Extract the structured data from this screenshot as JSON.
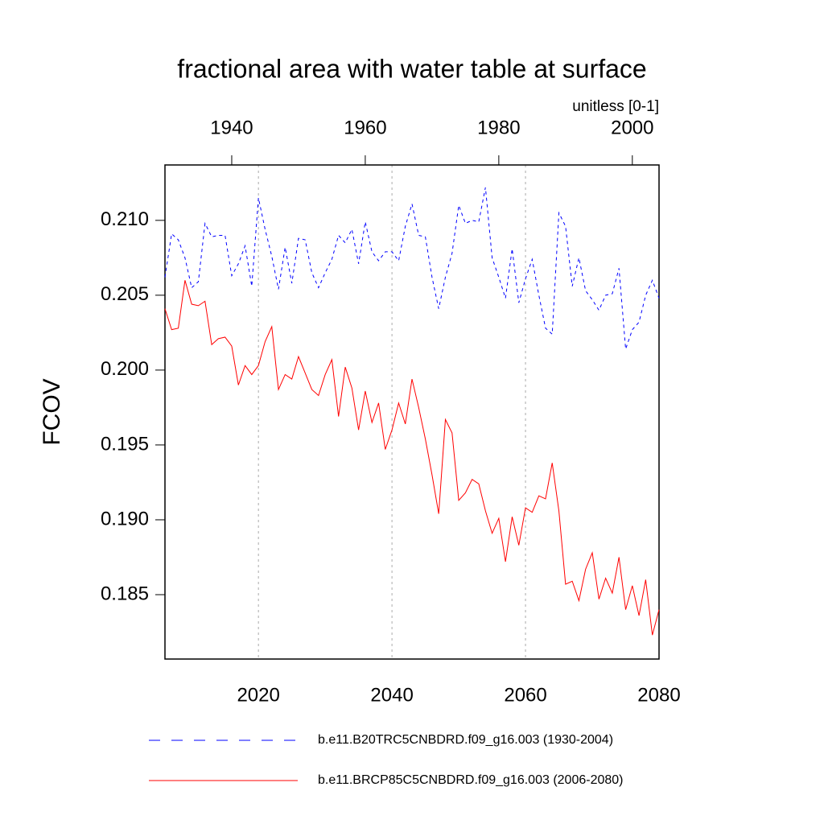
{
  "chart_data": {
    "type": "line",
    "title": "fractional area with water table at surface",
    "subtitle": "unitless [0-1]",
    "ylabel": "FCOV",
    "xlim": [
      2006,
      2080
    ],
    "xticks": [
      2020,
      2040,
      2060,
      2080
    ],
    "x2lim": [
      1930,
      2004
    ],
    "x2ticks": [
      1940,
      1960,
      1980,
      2000
    ],
    "ylim": [
      0.1807,
      0.2137
    ],
    "yticks": [
      0.185,
      {
        "value": 0.19,
        "label": "0.190"
      },
      0.195,
      {
        "value": 0.2,
        "label": "0.200"
      },
      0.205,
      {
        "value": 0.21,
        "label": "0.210"
      }
    ],
    "grid": true,
    "series": [
      {
        "name": "b.e11.B20TRC5CNBDRD.f09_g16.003 (1930-2004)",
        "color": "#0000ff",
        "dash": true,
        "axis": "x2",
        "x": [
          1930,
          1931,
          1932,
          1933,
          1934,
          1935,
          1936,
          1937,
          1938,
          1939,
          1940,
          1941,
          1942,
          1943,
          1944,
          1945,
          1946,
          1947,
          1948,
          1949,
          1950,
          1951,
          1952,
          1953,
          1954,
          1955,
          1956,
          1957,
          1958,
          1959,
          1960,
          1961,
          1962,
          1963,
          1964,
          1965,
          1966,
          1967,
          1968,
          1969,
          1970,
          1971,
          1972,
          1973,
          1974,
          1975,
          1976,
          1977,
          1978,
          1979,
          1980,
          1981,
          1982,
          1983,
          1984,
          1985,
          1986,
          1987,
          1988,
          1989,
          1990,
          1991,
          1992,
          1993,
          1994,
          1995,
          1996,
          1997,
          1998,
          1999,
          2000,
          2001,
          2002,
          2003,
          2004
        ],
        "values": [
          0.2062,
          0.2091,
          0.2087,
          0.2075,
          0.2055,
          0.2059,
          0.2098,
          0.2089,
          0.209,
          0.209,
          0.2063,
          0.2071,
          0.2083,
          0.2056,
          0.2115,
          0.2094,
          0.2076,
          0.2054,
          0.2082,
          0.2058,
          0.2088,
          0.2087,
          0.2065,
          0.2055,
          0.2065,
          0.2074,
          0.209,
          0.2085,
          0.2094,
          0.2071,
          0.2099,
          0.2079,
          0.2073,
          0.2079,
          0.2079,
          0.2073,
          0.2096,
          0.2111,
          0.209,
          0.2089,
          0.2062,
          0.2041,
          0.2062,
          0.2078,
          0.211,
          0.2098,
          0.21,
          0.2099,
          0.2122,
          0.2075,
          0.2062,
          0.2048,
          0.2081,
          0.2045,
          0.2061,
          0.2074,
          0.205,
          0.2028,
          0.2024,
          0.2105,
          0.2096,
          0.2056,
          0.2075,
          0.2053,
          0.2047,
          0.204,
          0.205,
          0.2051,
          0.2068,
          0.2014,
          0.2027,
          0.2032,
          0.205,
          0.206,
          0.2048
        ]
      },
      {
        "name": "b.e11.BRCP85C5CNBDRD.f09_g16.003 (2006-2080)",
        "color": "#ff0000",
        "dash": false,
        "axis": "x",
        "x": [
          2006,
          2007,
          2008,
          2009,
          2010,
          2011,
          2012,
          2013,
          2014,
          2015,
          2016,
          2017,
          2018,
          2019,
          2020,
          2021,
          2022,
          2023,
          2024,
          2025,
          2026,
          2027,
          2028,
          2029,
          2030,
          2031,
          2032,
          2033,
          2034,
          2035,
          2036,
          2037,
          2038,
          2039,
          2040,
          2041,
          2042,
          2043,
          2044,
          2045,
          2046,
          2047,
          2048,
          2049,
          2050,
          2051,
          2052,
          2053,
          2054,
          2055,
          2056,
          2057,
          2058,
          2059,
          2060,
          2061,
          2062,
          2063,
          2064,
          2065,
          2066,
          2067,
          2068,
          2069,
          2070,
          2071,
          2072,
          2073,
          2074,
          2075,
          2076,
          2077,
          2078,
          2079,
          2080
        ],
        "values": [
          0.2041,
          0.2027,
          0.2028,
          0.206,
          0.2044,
          0.2043,
          0.2046,
          0.2017,
          0.2021,
          0.2022,
          0.2016,
          0.199,
          0.2003,
          0.1997,
          0.2003,
          0.2019,
          0.2029,
          0.1987,
          0.1997,
          0.1994,
          0.2009,
          0.1998,
          0.1987,
          0.1983,
          0.1997,
          0.2007,
          0.1969,
          0.2002,
          0.1988,
          0.196,
          0.1986,
          0.1965,
          0.1978,
          0.1947,
          0.196,
          0.1978,
          0.1964,
          0.1994,
          0.1975,
          0.1954,
          0.193,
          0.1904,
          0.1967,
          0.1958,
          0.1913,
          0.1918,
          0.1927,
          0.1924,
          0.1906,
          0.1891,
          0.1901,
          0.1872,
          0.1902,
          0.1883,
          0.1908,
          0.1905,
          0.1916,
          0.1914,
          0.1938,
          0.1906,
          0.1857,
          0.1859,
          0.1846,
          0.1867,
          0.1878,
          0.1847,
          0.1861,
          0.1851,
          0.1875,
          0.184,
          0.1856,
          0.1836,
          0.186,
          0.1823,
          0.184
        ]
      }
    ]
  }
}
